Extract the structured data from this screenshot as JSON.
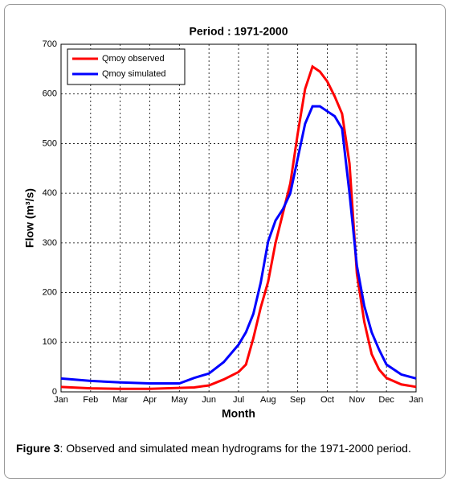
{
  "chart_data": {
    "type": "line",
    "title": "Period : 1971-2000",
    "x_label": "Month",
    "y_label": "Flow (m³/s)",
    "x": [
      0,
      1,
      2,
      3,
      4,
      4.5,
      5,
      5.5,
      6,
      6.25,
      6.5,
      6.75,
      7,
      7.25,
      7.5,
      7.75,
      8,
      8.25,
      8.5,
      8.75,
      9,
      9.25,
      9.5,
      9.75,
      10,
      10.25,
      10.5,
      10.75,
      11,
      11.5,
      12
    ],
    "series": [
      {
        "name": "Qmoy observed",
        "color": "#ff0000",
        "values": [
          10,
          7,
          6,
          6,
          8,
          9,
          13,
          25,
          40,
          55,
          108,
          170,
          222,
          300,
          360,
          420,
          520,
          610,
          655,
          645,
          625,
          595,
          560,
          460,
          238,
          141,
          76,
          45,
          28,
          15,
          10
        ]
      },
      {
        "name": "Qmoy simulated",
        "color": "#0000ff",
        "values": [
          27,
          22,
          19,
          17,
          17,
          28,
          37,
          60,
          95,
          120,
          157,
          220,
          303,
          345,
          368,
          400,
          470,
          540,
          575,
          575,
          565,
          555,
          530,
          400,
          254,
          173,
          120,
          85,
          55,
          35,
          27
        ]
      }
    ],
    "xlim": [
      0,
      12
    ],
    "xticks": [
      {
        "value": 0,
        "label": "Jan"
      },
      {
        "value": 1,
        "label": "Feb"
      },
      {
        "value": 2,
        "label": "Mar"
      },
      {
        "value": 3,
        "label": "Apr"
      },
      {
        "value": 4,
        "label": "May"
      },
      {
        "value": 5,
        "label": "Jun"
      },
      {
        "value": 6,
        "label": "Jul"
      },
      {
        "value": 7,
        "label": "Aug"
      },
      {
        "value": 8,
        "label": "Sep"
      },
      {
        "value": 9,
        "label": "Oct"
      },
      {
        "value": 10,
        "label": "Nov"
      },
      {
        "value": 11,
        "label": "Dec"
      },
      {
        "value": 12,
        "label": "Jan"
      }
    ],
    "ylim": [
      0,
      700
    ],
    "yticks": [
      0,
      100,
      200,
      300,
      400,
      500,
      600,
      700
    ],
    "grid": true,
    "legend": "upper-left"
  },
  "caption": {
    "label": "Figure 3",
    "text": ": Observed and simulated mean hydrograms for the 1971-2000 period."
  }
}
